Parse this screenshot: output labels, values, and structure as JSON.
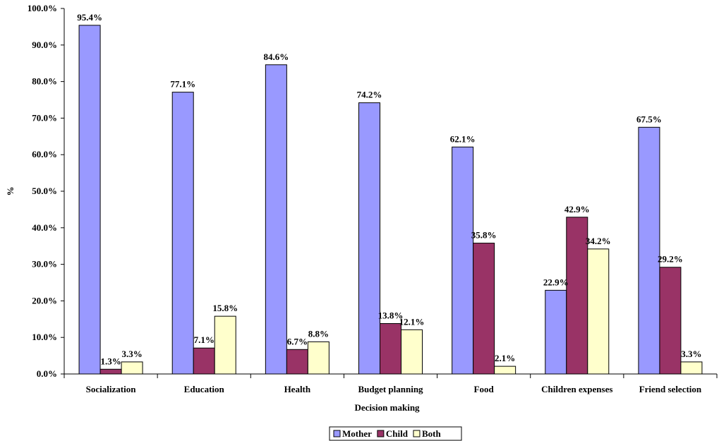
{
  "chart_data": {
    "type": "bar",
    "title": "",
    "xlabel": "Decision making",
    "ylabel": "%",
    "ylim": [
      0,
      100
    ],
    "y_ticks": [
      "0.0%",
      "10.0%",
      "20.0%",
      "30.0%",
      "40.0%",
      "50.0%",
      "60.0%",
      "70.0%",
      "80.0%",
      "90.0%",
      "100.0%"
    ],
    "categories": [
      "Socialization",
      "Education",
      "Health",
      "Budget planning",
      "Food",
      "Children expenses",
      "Friend selection"
    ],
    "series": [
      {
        "name": "Mother",
        "color": "#9999ff",
        "values": [
          95.4,
          77.1,
          84.6,
          74.2,
          62.1,
          22.9,
          67.5
        ],
        "labels": [
          "95.4%",
          "77.1%",
          "84.6%",
          "74.2%",
          "62.1%",
          "22.9%",
          "67.5%"
        ]
      },
      {
        "name": "Child",
        "color": "#993366",
        "values": [
          1.3,
          7.1,
          6.7,
          13.8,
          35.8,
          42.9,
          29.2
        ],
        "labels": [
          "1.3%",
          "7.1%",
          "6.7%",
          "13.8%",
          "35.8%",
          "42.9%",
          "29.2%"
        ]
      },
      {
        "name": "Both",
        "color": "#ffffcc",
        "values": [
          3.3,
          15.8,
          8.8,
          12.1,
          2.1,
          34.2,
          3.3
        ],
        "labels": [
          "3.3%",
          "15.8%",
          "8.8%",
          "12.1%",
          "2.1%",
          "34.2%",
          "3.3%"
        ]
      }
    ],
    "legend_position": "bottom",
    "grid": false
  }
}
